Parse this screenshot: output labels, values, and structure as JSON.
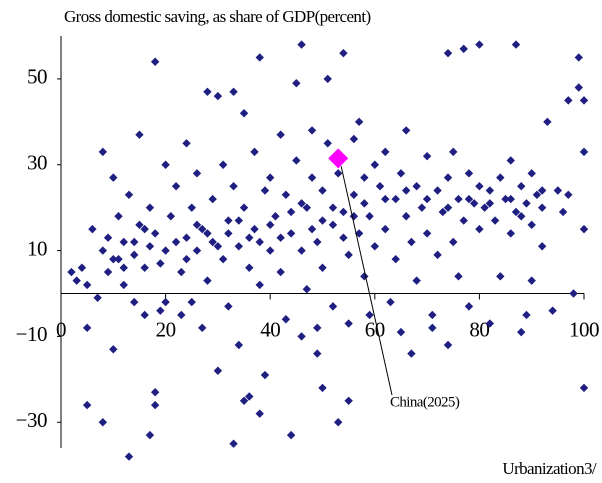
{
  "chart_data": {
    "type": "scatter",
    "title": "Gross domestic saving, as share of GDP(percent)",
    "x_label": "Urbanization3/",
    "color": "#1f1f82",
    "xlim": [
      0,
      100
    ],
    "ylim": [
      -36,
      60
    ],
    "xticks": [
      0,
      20,
      40,
      60,
      80,
      100
    ],
    "yticks": [
      50,
      30,
      10,
      {
        "value": -10,
        "label": "−10"
      },
      {
        "value": -30,
        "label": "−30"
      }
    ],
    "highlight": {
      "label": "China(2025)",
      "x": 53,
      "y": 31.5,
      "color": "#ff00ff"
    },
    "x": [
      2,
      3,
      4,
      5,
      5,
      6,
      7,
      8,
      8,
      9,
      9,
      10,
      10,
      11,
      11,
      12,
      12,
      13,
      13,
      14,
      14,
      15,
      15,
      16,
      16,
      17,
      17,
      18,
      18,
      19,
      19,
      20,
      20,
      20,
      5,
      8,
      18,
      17,
      18,
      21,
      22,
      23,
      23,
      24,
      24,
      25,
      25,
      26,
      26,
      27,
      27,
      28,
      28,
      29,
      29,
      30,
      30,
      31,
      31,
      32,
      32,
      33,
      33,
      34,
      34,
      35,
      35,
      36,
      36,
      37,
      37,
      38,
      38,
      39,
      39,
      40,
      40,
      33,
      35,
      38,
      41,
      42,
      42,
      43,
      43,
      44,
      45,
      45,
      46,
      46,
      47,
      47,
      48,
      48,
      49,
      49,
      50,
      50,
      51,
      51,
      52,
      52,
      53,
      54,
      54,
      55,
      55,
      56,
      56,
      57,
      57,
      58,
      58,
      59,
      59,
      60,
      60,
      44,
      50,
      49,
      55,
      46,
      53,
      61,
      62,
      62,
      63,
      64,
      64,
      65,
      65,
      66,
      66,
      67,
      68,
      68,
      69,
      70,
      70,
      71,
      72,
      72,
      73,
      74,
      74,
      75,
      75,
      76,
      76,
      77,
      78,
      78,
      79,
      80,
      80,
      67,
      71,
      80,
      74,
      77,
      81,
      82,
      82,
      83,
      84,
      84,
      85,
      86,
      86,
      87,
      87,
      88,
      88,
      89,
      90,
      90,
      91,
      92,
      92,
      93,
      95,
      96,
      97,
      98,
      99,
      99,
      100,
      100,
      100,
      100,
      94,
      89,
      90,
      97,
      10,
      12,
      14,
      16,
      22,
      24,
      26,
      28,
      30,
      32,
      34,
      36,
      38,
      40,
      42,
      44,
      46,
      48,
      50,
      52,
      54,
      56,
      58,
      62,
      66,
      70,
      74,
      78,
      82,
      86,
      88,
      92
    ],
    "values": [
      5,
      3,
      6,
      -8,
      2,
      15,
      -1,
      33,
      10,
      13,
      5,
      27,
      -13,
      18,
      8,
      2,
      12,
      -38,
      23,
      9,
      -2,
      16,
      37,
      6,
      -5,
      20,
      11,
      54,
      14,
      -4,
      7,
      30,
      -2,
      10,
      -26,
      -30,
      -26,
      -33,
      -23,
      18,
      25,
      5,
      -5,
      13,
      35,
      20,
      -2,
      28,
      10,
      15,
      -8,
      47,
      3,
      22,
      12,
      46,
      -18,
      8,
      30,
      17,
      -3,
      25,
      47,
      11,
      -12,
      20,
      42,
      6,
      -24,
      15,
      33,
      55,
      2,
      24,
      -19,
      10,
      27,
      -35,
      -25,
      -28,
      18,
      37,
      5,
      23,
      -6,
      14,
      31,
      49,
      10,
      -10,
      20,
      1,
      27,
      38,
      12,
      -8,
      24,
      6,
      35,
      50,
      16,
      -3,
      28,
      56,
      19,
      9,
      -7,
      23,
      36,
      14,
      40,
      4,
      27,
      18,
      -5,
      30,
      11,
      -33,
      -22,
      -14,
      -25,
      58,
      -30,
      25,
      15,
      33,
      -2,
      22,
      8,
      28,
      -9,
      18,
      38,
      12,
      25,
      3,
      20,
      32,
      14,
      -5,
      24,
      9,
      19,
      27,
      56,
      12,
      33,
      22,
      4,
      17,
      28,
      -3,
      21,
      15,
      25,
      -14,
      -8,
      58,
      -12,
      57,
      20,
      24,
      -7,
      17,
      27,
      4,
      22,
      31,
      14,
      19,
      58,
      25,
      -9,
      21,
      16,
      28,
      23,
      11,
      20,
      40,
      24,
      19,
      23,
      0,
      55,
      48,
      45,
      33,
      15,
      -22,
      -4,
      -5,
      3,
      45,
      8,
      6,
      12,
      15,
      12,
      8,
      16,
      14,
      11,
      14,
      17,
      13,
      12,
      16,
      13,
      19,
      21,
      15,
      17,
      20,
      13,
      18,
      21,
      22,
      24,
      22,
      20,
      22,
      21,
      22,
      18,
      24
    ]
  }
}
